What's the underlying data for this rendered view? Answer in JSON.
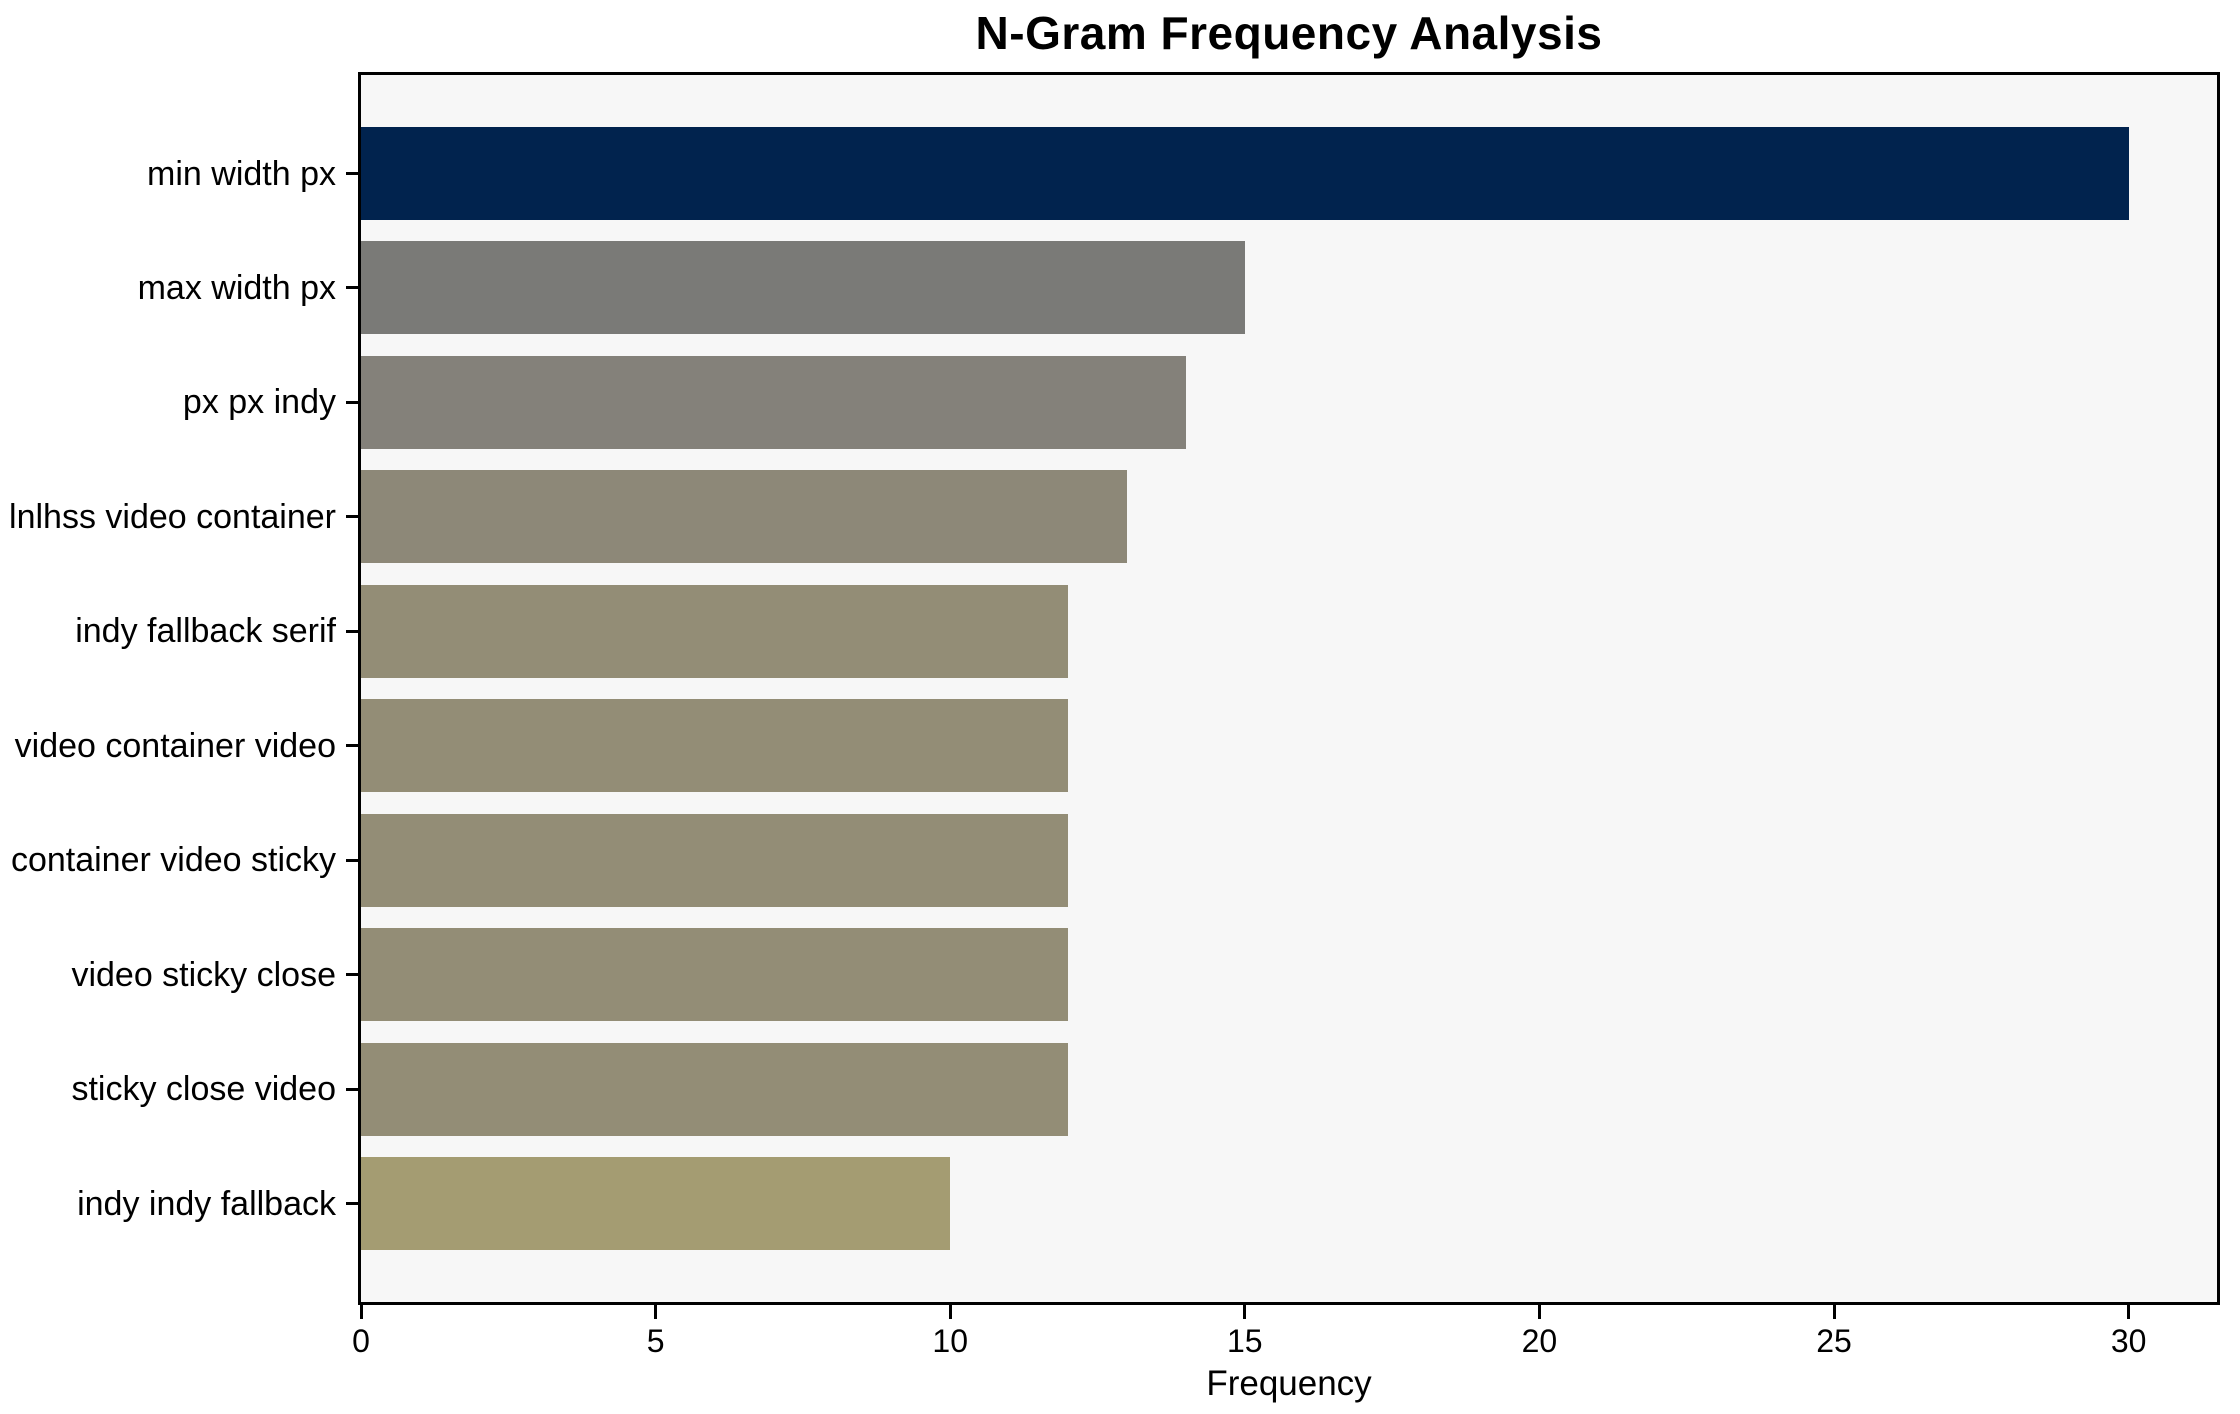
{
  "chart_data": {
    "type": "bar",
    "orientation": "horizontal",
    "title": "N-Gram Frequency Analysis",
    "xlabel": "Frequency",
    "ylabel": "",
    "categories": [
      "min width px",
      "max width px",
      "px px indy",
      "lnlhss video container",
      "indy fallback serif",
      "video container video",
      "container video sticky",
      "video sticky close",
      "sticky close video",
      "indy indy fallback"
    ],
    "values": [
      30,
      15,
      14,
      13,
      12,
      12,
      12,
      12,
      12,
      10
    ],
    "bar_colors": [
      "#01234e",
      "#7a7a77",
      "#84817a",
      "#8d8878",
      "#938d76",
      "#938d76",
      "#938d76",
      "#938d76",
      "#938d76",
      "#a49c72"
    ],
    "xlim": [
      0,
      31.5
    ],
    "xticks": [
      0,
      5,
      10,
      15,
      20,
      25,
      30
    ],
    "grid": false,
    "legend": null,
    "colors": {
      "figure_background": "#ffffff",
      "plot_background": "#f7f7f7",
      "spine": "#000000",
      "text": "#000000"
    }
  }
}
